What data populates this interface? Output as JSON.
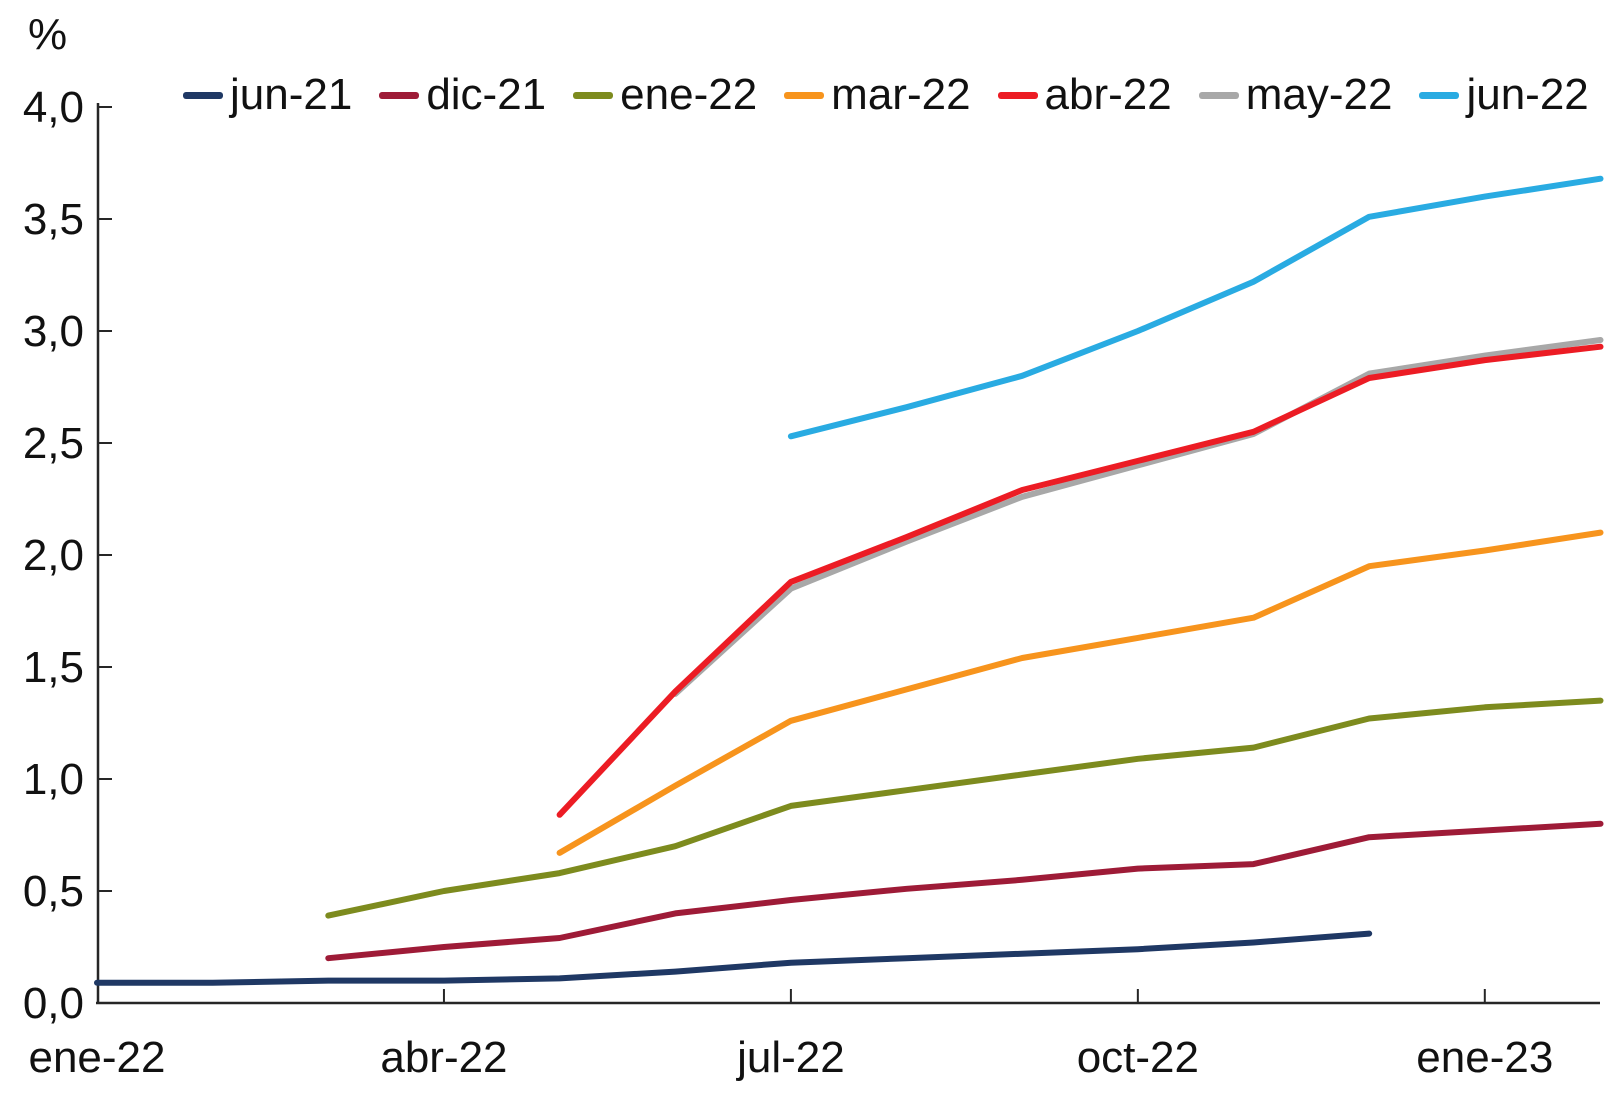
{
  "y_axis_unit": "%",
  "y_tick_labels": [
    "4,0",
    "3,5",
    "3,0",
    "2,5",
    "2,0",
    "1,5",
    "1,0",
    "0,5",
    "0,0"
  ],
  "x_axis": {
    "ticks": [
      {
        "label": "ene-22",
        "month": 0,
        "mark": false
      },
      {
        "label": "abr-22",
        "month": 3,
        "mark": true
      },
      {
        "label": "jul-22",
        "month": 6,
        "mark": true
      },
      {
        "label": "oct-22",
        "month": 9,
        "mark": true
      },
      {
        "label": "ene-23",
        "month": 12,
        "mark": true
      }
    ]
  },
  "legend": [
    "jun-21",
    "dic-21",
    "ene-22",
    "mar-22",
    "abr-22",
    "may-22",
    "jun-22"
  ],
  "chart_data": {
    "type": "line",
    "title": "",
    "ylabel": "%",
    "ylim": [
      0.0,
      4.0
    ],
    "y_tick_step": 0.5,
    "grid": false,
    "legend_position": "top",
    "x": [
      "ene-22",
      "feb-22",
      "mar-22",
      "abr-22",
      "may-22",
      "jun-22",
      "jul-22",
      "ago-22",
      "sep-22",
      "oct-22",
      "nov-22",
      "dic-22",
      "ene-23",
      "feb-23"
    ],
    "series": [
      {
        "name": "jun-21",
        "color": "#1f3864",
        "values": [
          0.09,
          0.09,
          0.1,
          0.1,
          0.11,
          0.14,
          0.18,
          0.2,
          0.22,
          0.24,
          0.27,
          0.31,
          null,
          null
        ]
      },
      {
        "name": "dic-21",
        "color": "#9e1b37",
        "values": [
          null,
          null,
          0.2,
          0.25,
          0.29,
          0.4,
          0.46,
          0.51,
          0.55,
          0.6,
          0.62,
          0.74,
          0.77,
          0.8
        ]
      },
      {
        "name": "ene-22",
        "color": "#7d8b1e",
        "values": [
          null,
          null,
          0.39,
          0.5,
          0.58,
          0.7,
          0.88,
          0.95,
          1.02,
          1.09,
          1.14,
          1.27,
          1.32,
          1.35
        ]
      },
      {
        "name": "mar-22",
        "color": "#f7941d",
        "values": [
          null,
          null,
          null,
          null,
          0.67,
          0.97,
          1.26,
          1.4,
          1.54,
          1.63,
          1.72,
          1.95,
          2.02,
          2.1
        ]
      },
      {
        "name": "abr-22",
        "color": "#ec1c24",
        "values": [
          null,
          null,
          null,
          null,
          0.84,
          1.39,
          1.88,
          2.08,
          2.29,
          2.42,
          2.55,
          2.79,
          2.87,
          2.93
        ]
      },
      {
        "name": "may-22",
        "color": "#a8a8a8",
        "values": [
          null,
          null,
          null,
          null,
          null,
          1.38,
          1.85,
          2.06,
          2.26,
          2.4,
          2.54,
          2.81,
          2.89,
          2.96
        ]
      },
      {
        "name": "jun-22",
        "color": "#29abe2",
        "values": [
          null,
          null,
          null,
          null,
          null,
          null,
          2.53,
          2.66,
          2.8,
          3.0,
          3.22,
          3.51,
          3.6,
          3.68
        ]
      }
    ],
    "draw_order": [
      "jun-21",
      "dic-21",
      "ene-22",
      "mar-22",
      "may-22",
      "abr-22",
      "jun-22"
    ]
  }
}
